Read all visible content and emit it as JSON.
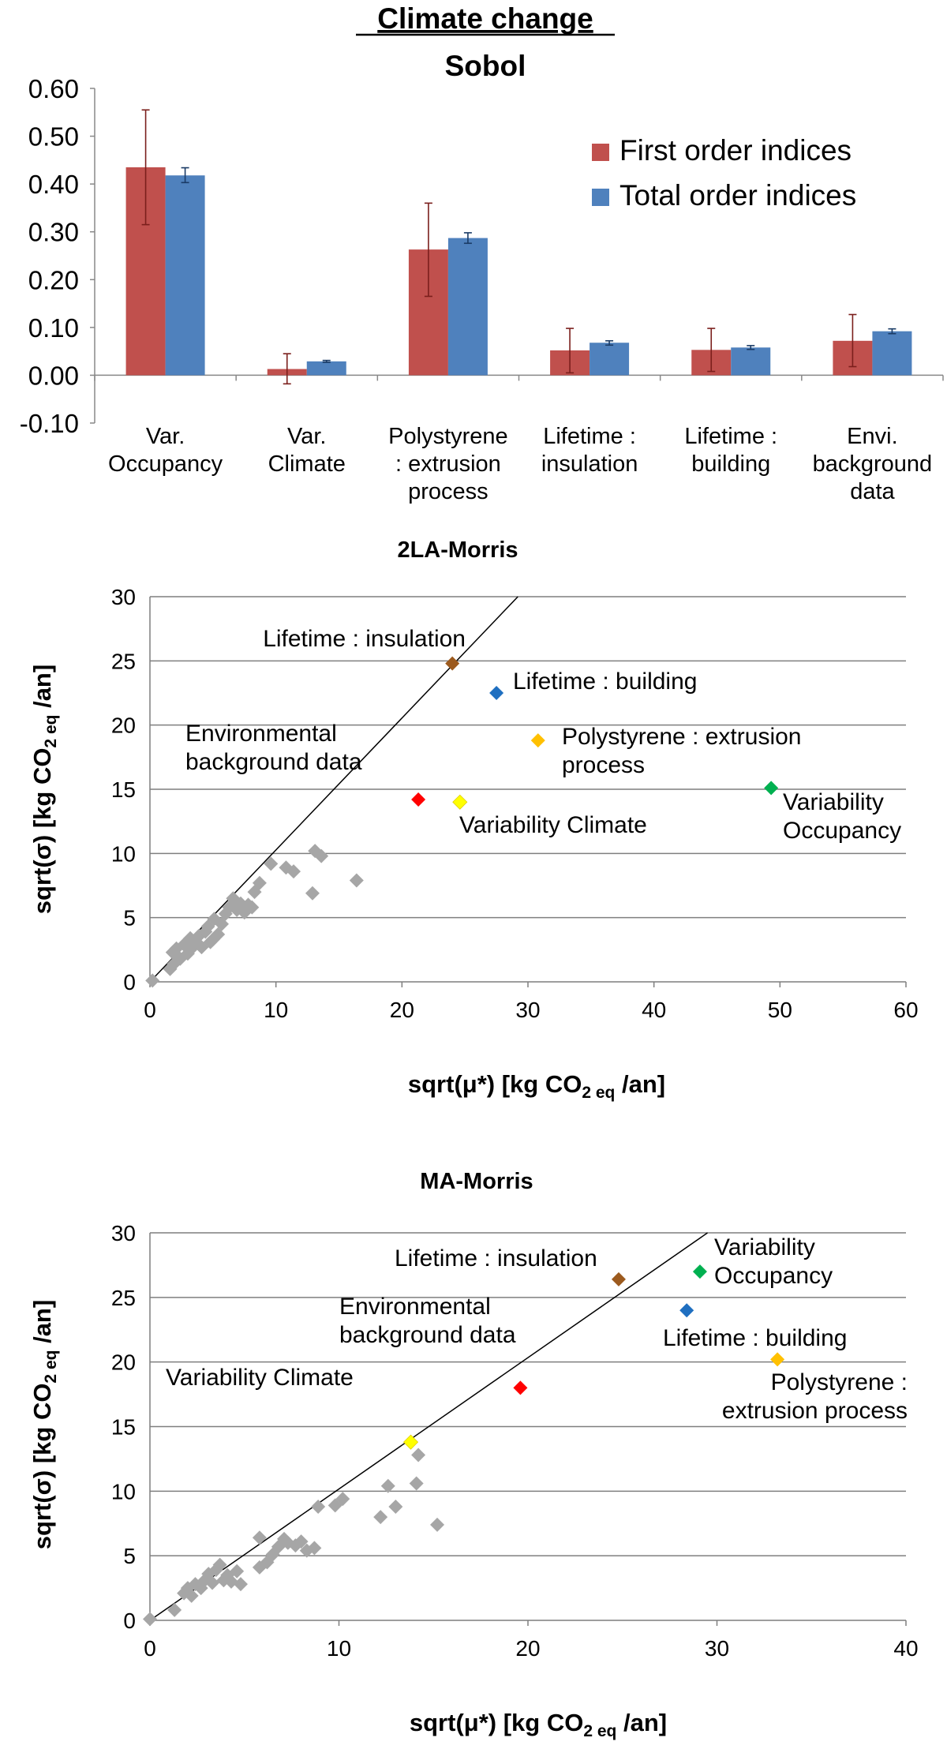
{
  "chart_data": [
    {
      "type": "bar",
      "title": "Climate change",
      "subtitle": "Sobol",
      "categories": [
        [
          "Var.",
          "Occupancy"
        ],
        [
          "Var.",
          "Climate"
        ],
        [
          "Polystyrene",
          ": extrusion",
          "process"
        ],
        [
          "Lifetime :",
          "insulation"
        ],
        [
          "Lifetime :",
          "building"
        ],
        [
          "Envi.",
          "background",
          "data"
        ]
      ],
      "series": [
        {
          "name": "First order indices",
          "color": "#c0504d",
          "values": [
            0.435,
            0.013,
            0.263,
            0.052,
            0.053,
            0.072
          ],
          "err_low": [
            0.315,
            -0.018,
            0.165,
            0.005,
            0.008,
            0.018
          ],
          "err_high": [
            0.555,
            0.045,
            0.36,
            0.098,
            0.098,
            0.127
          ]
        },
        {
          "name": "Total order indices",
          "color": "#4f81bd",
          "values": [
            0.418,
            0.029,
            0.287,
            0.068,
            0.058,
            0.092
          ],
          "err_low": [
            0.403,
            0.027,
            0.276,
            0.063,
            0.054,
            0.087
          ],
          "err_high": [
            0.434,
            0.031,
            0.298,
            0.072,
            0.062,
            0.097
          ]
        }
      ],
      "ylim": [
        -0.1,
        0.6
      ],
      "yticks": [
        "-0.10",
        "0.00",
        "0.10",
        "0.20",
        "0.30",
        "0.40",
        "0.50",
        "0.60"
      ],
      "legend_position": "top-right",
      "grid": false
    },
    {
      "type": "scatter",
      "title": "2LA-Morris",
      "xlabel": {
        "main": "sqrt(μ*) [kg CO",
        "sub": "2 eq",
        "tail": " /an]"
      },
      "ylabel": {
        "main": "sqrt(σ) [kg CO",
        "sub": "2 eq",
        "tail": " /an]"
      },
      "xlim": [
        0,
        60
      ],
      "ylim": [
        0,
        30
      ],
      "xticks": [
        "0",
        "10",
        "20",
        "30",
        "40",
        "50",
        "60"
      ],
      "yticks": [
        "0",
        "5",
        "10",
        "15",
        "20",
        "25",
        "30"
      ],
      "grid": true,
      "reference_line": [
        [
          0,
          0
        ],
        [
          29.2,
          30
        ]
      ],
      "highlighted": [
        {
          "x": 24.0,
          "y": 24.8,
          "color": "#9c5a1e",
          "label": [
            "Lifetime : insulation"
          ]
        },
        {
          "x": 27.5,
          "y": 22.5,
          "color": "#1f6fc0",
          "label": [
            "Lifetime : building"
          ]
        },
        {
          "x": 30.8,
          "y": 18.8,
          "color": "#ffc000",
          "label": [
            "Polystyrene : extrusion",
            "process"
          ]
        },
        {
          "x": 21.3,
          "y": 14.2,
          "color": "#ff0000",
          "label": [
            "Environmental",
            "background data"
          ]
        },
        {
          "x": 24.6,
          "y": 14.0,
          "color": "#ffff00",
          "label": [
            "Variability Climate"
          ]
        },
        {
          "x": 49.3,
          "y": 15.1,
          "color": "#00b050",
          "label": [
            "Variability",
            "Occupancy"
          ]
        }
      ],
      "other_points": [
        [
          0.2,
          0.1
        ],
        [
          1.6,
          1.0
        ],
        [
          1.9,
          1.4
        ],
        [
          1.8,
          2.3
        ],
        [
          2.1,
          2.6
        ],
        [
          2.4,
          1.8
        ],
        [
          2.7,
          2.9
        ],
        [
          3.0,
          2.2
        ],
        [
          3.2,
          3.4
        ],
        [
          3.6,
          3.0
        ],
        [
          3.9,
          3.6
        ],
        [
          4.1,
          2.7
        ],
        [
          4.4,
          3.9
        ],
        [
          4.6,
          4.3
        ],
        [
          4.8,
          3.1
        ],
        [
          5.1,
          4.9
        ],
        [
          5.4,
          3.7
        ],
        [
          5.7,
          4.5
        ],
        [
          6.0,
          5.3
        ],
        [
          6.3,
          5.8
        ],
        [
          6.6,
          6.5
        ],
        [
          6.9,
          5.6
        ],
        [
          7.2,
          6.1
        ],
        [
          7.5,
          5.4
        ],
        [
          7.8,
          6.0
        ],
        [
          8.1,
          5.8
        ],
        [
          8.3,
          7.0
        ],
        [
          8.7,
          7.7
        ],
        [
          9.6,
          9.2
        ],
        [
          10.8,
          8.9
        ],
        [
          11.4,
          8.6
        ],
        [
          12.9,
          6.9
        ],
        [
          13.1,
          10.2
        ],
        [
          13.6,
          9.8
        ],
        [
          16.4,
          7.9
        ],
        [
          5.0,
          3.3
        ],
        [
          3.3,
          2.6
        ],
        [
          6.8,
          6.2
        ]
      ]
    },
    {
      "type": "scatter",
      "title": "MA-Morris",
      "xlabel": {
        "main": "sqrt(μ*) [kg CO",
        "sub": "2 eq",
        "tail": " /an]"
      },
      "ylabel": {
        "main": "sqrt(σ) [kg CO",
        "sub": "2 eq",
        "tail": " /an]"
      },
      "xlim": [
        0,
        40
      ],
      "ylim": [
        0,
        30
      ],
      "xticks": [
        "0",
        "10",
        "20",
        "30",
        "40"
      ],
      "yticks": [
        "0",
        "5",
        "10",
        "15",
        "20",
        "25",
        "30"
      ],
      "grid": true,
      "reference_line": [
        [
          0,
          0
        ],
        [
          29.5,
          30
        ]
      ],
      "highlighted": [
        {
          "x": 24.8,
          "y": 26.4,
          "color": "#9c5a1e",
          "label": [
            "Lifetime : insulation"
          ]
        },
        {
          "x": 29.1,
          "y": 27.0,
          "color": "#00b050",
          "label": [
            "Variability",
            "Occupancy"
          ]
        },
        {
          "x": 28.4,
          "y": 24.0,
          "color": "#1f6fc0",
          "label": [
            "Lifetime : building"
          ]
        },
        {
          "x": 33.2,
          "y": 20.2,
          "color": "#ffc000",
          "label": [
            "Polystyrene :",
            "extrusion process"
          ]
        },
        {
          "x": 19.6,
          "y": 18.0,
          "color": "#ff0000",
          "label": [
            "Environmental",
            "background data"
          ]
        },
        {
          "x": 13.8,
          "y": 13.8,
          "color": "#ffff00",
          "label": [
            "Variability Climate"
          ]
        }
      ],
      "other_points": [
        [
          0.0,
          0.1
        ],
        [
          1.3,
          0.8
        ],
        [
          1.8,
          2.1
        ],
        [
          2.0,
          2.5
        ],
        [
          2.2,
          1.9
        ],
        [
          2.4,
          2.8
        ],
        [
          2.7,
          2.5
        ],
        [
          2.9,
          3.1
        ],
        [
          3.1,
          3.6
        ],
        [
          3.3,
          2.9
        ],
        [
          3.5,
          3.9
        ],
        [
          3.7,
          4.3
        ],
        [
          3.9,
          3.1
        ],
        [
          4.1,
          3.5
        ],
        [
          4.3,
          3.0
        ],
        [
          4.6,
          3.8
        ],
        [
          4.8,
          2.8
        ],
        [
          5.8,
          6.4
        ],
        [
          5.8,
          4.1
        ],
        [
          6.2,
          4.5
        ],
        [
          6.5,
          5.1
        ],
        [
          6.8,
          5.7
        ],
        [
          7.1,
          6.3
        ],
        [
          7.3,
          6.0
        ],
        [
          7.7,
          5.8
        ],
        [
          8.0,
          6.1
        ],
        [
          8.3,
          5.4
        ],
        [
          8.7,
          5.6
        ],
        [
          8.9,
          8.8
        ],
        [
          9.8,
          8.9
        ],
        [
          10.2,
          9.4
        ],
        [
          12.2,
          8.0
        ],
        [
          12.6,
          10.4
        ],
        [
          13.0,
          8.8
        ],
        [
          14.2,
          12.8
        ],
        [
          14.1,
          10.6
        ],
        [
          15.2,
          7.4
        ]
      ]
    }
  ]
}
